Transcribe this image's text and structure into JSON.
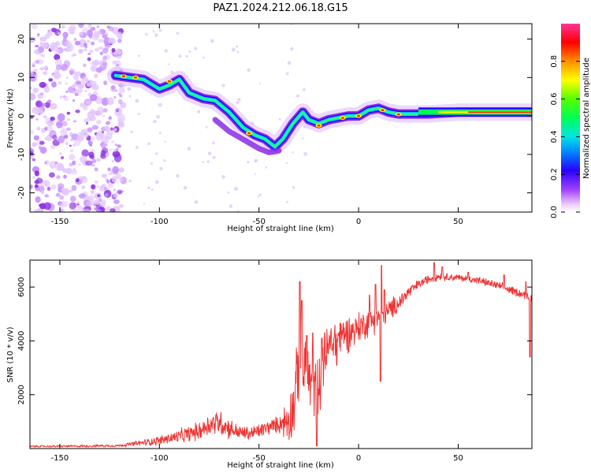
{
  "title": "PAZ1.2024.212.06.18.G15",
  "chart_data": [
    {
      "type": "heatmap",
      "xlabel": "Height of straight line (km)",
      "ylabel": "Frequency (Hz)",
      "xlim": [
        -165,
        87
      ],
      "ylim": [
        -25,
        24
      ],
      "xticks": [
        -150,
        -100,
        -50,
        0,
        50
      ],
      "yticks": [
        -20,
        -10,
        0,
        10,
        20
      ],
      "colorbar": {
        "label": "Normalized spectral amplitude",
        "range": [
          0,
          1
        ],
        "ticks": [
          "0.0",
          "0.2",
          "0.4",
          "0.6",
          "0.8"
        ],
        "tick_values": [
          0,
          0.2,
          0.4,
          0.6,
          0.8
        ]
      },
      "ridge": [
        [
          -122,
          10.5
        ],
        [
          -115,
          10
        ],
        [
          -108,
          9.5
        ],
        [
          -100,
          7
        ],
        [
          -95,
          8
        ],
        [
          -90,
          9.5
        ],
        [
          -85,
          6
        ],
        [
          -78,
          4.5
        ],
        [
          -72,
          4
        ],
        [
          -65,
          1
        ],
        [
          -58,
          -3
        ],
        [
          -52,
          -5
        ],
        [
          -47,
          -6
        ],
        [
          -42,
          -8
        ],
        [
          -38,
          -6
        ],
        [
          -33,
          -2
        ],
        [
          -28,
          1
        ],
        [
          -25,
          -1
        ],
        [
          -20,
          -2
        ],
        [
          -15,
          -1
        ],
        [
          -10,
          -0.5
        ],
        [
          -5,
          0
        ],
        [
          0,
          0
        ],
        [
          5,
          1.5
        ],
        [
          10,
          2
        ],
        [
          15,
          1
        ],
        [
          20,
          0.5
        ],
        [
          25,
          0.5
        ],
        [
          35,
          0.5
        ],
        [
          50,
          1
        ],
        [
          87,
          1
        ]
      ]
    },
    {
      "type": "line",
      "xlabel": "Height of straight line (km)",
      "ylabel": "SNR (10 * v/v)",
      "xlim": [
        -165,
        87
      ],
      "ylim": [
        0,
        7000
      ],
      "xticks": [
        -150,
        -100,
        -50,
        0,
        50
      ],
      "yticks": [
        2000,
        4000,
        6000
      ],
      "series_color": "#ee3333",
      "envelope": [
        [
          -165,
          80
        ],
        [
          -140,
          90
        ],
        [
          -120,
          110
        ],
        [
          -110,
          200
        ],
        [
          -100,
          300
        ],
        [
          -90,
          450
        ],
        [
          -80,
          650
        ],
        [
          -75,
          900
        ],
        [
          -70,
          1000
        ],
        [
          -65,
          750
        ],
        [
          -60,
          600
        ],
        [
          -55,
          550
        ],
        [
          -50,
          650
        ],
        [
          -45,
          800
        ],
        [
          -40,
          900
        ],
        [
          -35,
          1100
        ],
        [
          -32,
          1800
        ],
        [
          -30,
          3200
        ],
        [
          -28,
          3000
        ],
        [
          -25,
          2600
        ],
        [
          -22,
          2300
        ],
        [
          -20,
          2400
        ],
        [
          -18,
          3000
        ],
        [
          -15,
          3800
        ],
        [
          -10,
          4200
        ],
        [
          -5,
          4300
        ],
        [
          0,
          4500
        ],
        [
          5,
          4700
        ],
        [
          10,
          4900
        ],
        [
          15,
          5100
        ],
        [
          20,
          5400
        ],
        [
          25,
          5800
        ],
        [
          30,
          6100
        ],
        [
          35,
          6300
        ],
        [
          40,
          6400
        ],
        [
          50,
          6350
        ],
        [
          60,
          6250
        ],
        [
          70,
          6050
        ],
        [
          80,
          5800
        ],
        [
          87,
          5600
        ]
      ],
      "noise": [
        [
          -165,
          40
        ],
        [
          -120,
          60
        ],
        [
          -100,
          200
        ],
        [
          -80,
          400
        ],
        [
          -70,
          600
        ],
        [
          -60,
          300
        ],
        [
          -40,
          350
        ],
        [
          -32,
          1500
        ],
        [
          -28,
          1800
        ],
        [
          -20,
          1300
        ],
        [
          -10,
          900
        ],
        [
          0,
          700
        ],
        [
          10,
          600
        ],
        [
          20,
          400
        ],
        [
          30,
          200
        ],
        [
          50,
          150
        ],
        [
          87,
          200
        ]
      ],
      "spikes": [
        [
          -29.5,
          6200
        ],
        [
          -28.5,
          5500
        ],
        [
          -26,
          4200
        ],
        [
          -23,
          4300
        ],
        [
          -18.5,
          4100
        ],
        [
          -17,
          4300
        ],
        [
          5.5,
          5700
        ],
        [
          8.5,
          6100
        ],
        [
          11.5,
          6800
        ],
        [
          13,
          5900
        ],
        [
          38,
          6900
        ],
        [
          42,
          6750
        ],
        [
          55,
          6550
        ],
        [
          73,
          6450
        ],
        [
          84,
          6200
        ]
      ],
      "dips": [
        [
          -21,
          100
        ],
        [
          -11,
          3100
        ],
        [
          11,
          2500
        ],
        [
          86,
          3400
        ]
      ]
    }
  ]
}
